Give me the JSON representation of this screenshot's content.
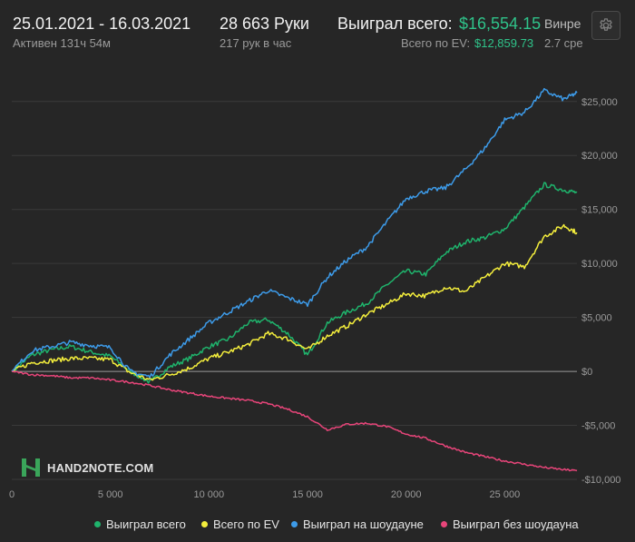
{
  "header": {
    "date_range": "25.01.2021 - 16.03.2021",
    "active": "Активен 131ч 54м",
    "hands": "28 663 Руки",
    "hands_per_hour": "217 рук в час",
    "won_label": "Выиграл всего:",
    "won_value": "$16,554.15",
    "ev_label": "Всего по EV:",
    "ev_value": "$12,859.73",
    "winrate_label": "Винре",
    "winrate_value": "2.7 сре"
  },
  "settings_icon": "gear-icon",
  "watermark": {
    "text": "HAND2NOTE.COM"
  },
  "colors": {
    "background": "#262626",
    "won_total": "#1fb36c",
    "ev_total": "#f4ee3c",
    "showdown": "#3d9be9",
    "non_showdown": "#e8457a",
    "accent_green": "#2fc38a"
  },
  "legend": [
    {
      "label": "Выиграл всего",
      "color": "#1fb36c"
    },
    {
      "label": "Всего по EV",
      "color": "#f4ee3c"
    },
    {
      "label": "Выиграл на шоудауне",
      "color": "#3d9be9"
    },
    {
      "label": "Выиграл без шоудауна",
      "color": "#e8457a"
    }
  ],
  "chart_data": {
    "type": "line",
    "xlabel": "",
    "ylabel": "",
    "xlim": [
      0,
      28663
    ],
    "ylim": [
      -10000,
      27000
    ],
    "x_ticks": [
      0,
      5000,
      10000,
      15000,
      20000,
      25000
    ],
    "x_tick_labels": [
      "0",
      "5 000",
      "10 000",
      "15 000",
      "20 000",
      "25 000"
    ],
    "y_ticks": [
      -10000,
      -5000,
      0,
      5000,
      10000,
      15000,
      20000,
      25000
    ],
    "y_tick_labels": [
      "-$10,000",
      "-$5,000",
      "$0",
      "$5,000",
      "$10,000",
      "$15,000",
      "$20,000",
      "$25,000"
    ],
    "grid": "horizontal",
    "x": [
      0,
      1000,
      2000,
      3000,
      4000,
      5000,
      6000,
      7000,
      8000,
      9000,
      10000,
      11000,
      12000,
      13000,
      14000,
      15000,
      16000,
      17000,
      18000,
      19000,
      20000,
      21000,
      22000,
      23000,
      24000,
      25000,
      26000,
      27000,
      28000,
      28663
    ],
    "series": [
      {
        "name": "Выиграл всего",
        "values": [
          0,
          1500,
          2000,
          2300,
          1800,
          1400,
          0,
          -1000,
          400,
          1200,
          2300,
          3000,
          4500,
          4800,
          3500,
          1500,
          4500,
          5500,
          6300,
          8000,
          9300,
          9000,
          11000,
          12000,
          12400,
          13200,
          15200,
          17300,
          16800,
          16554
        ]
      },
      {
        "name": "Всего по EV",
        "values": [
          0,
          800,
          1000,
          1200,
          1200,
          1100,
          -100,
          -800,
          -300,
          300,
          1200,
          1800,
          2500,
          3500,
          3000,
          2000,
          3300,
          4200,
          5300,
          6200,
          7200,
          7000,
          7800,
          7400,
          8700,
          10000,
          9700,
          12500,
          13500,
          12860
        ]
      },
      {
        "name": "Выиграл на шоудауне",
        "values": [
          0,
          1900,
          2300,
          2700,
          2400,
          2200,
          0,
          -500,
          1500,
          3000,
          4500,
          5500,
          6500,
          7500,
          6800,
          6200,
          8700,
          10300,
          11500,
          13800,
          16000,
          16700,
          17000,
          18700,
          20700,
          23300,
          24000,
          26000,
          25200,
          25800
        ]
      },
      {
        "name": "Выиграл без шоудауна",
        "values": [
          0,
          -300,
          -400,
          -600,
          -600,
          -800,
          -1000,
          -1300,
          -1700,
          -2000,
          -2300,
          -2500,
          -2700,
          -3000,
          -3500,
          -4200,
          -5400,
          -4900,
          -4800,
          -5100,
          -5800,
          -6200,
          -6900,
          -7500,
          -7900,
          -8300,
          -8600,
          -8900,
          -9100,
          -9200
        ]
      }
    ]
  }
}
